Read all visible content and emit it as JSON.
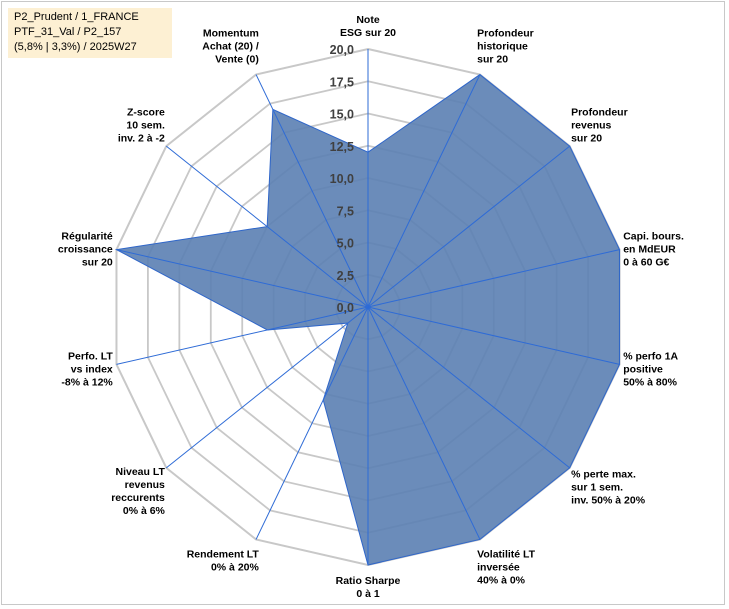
{
  "info_box": {
    "line1": "P2_Prudent / 1_FRANCE",
    "line2": "PTF_31_Val / P2_157",
    "line3": "(5,8% | 3,3%) / 2025W27"
  },
  "chart_data": {
    "type": "radar",
    "rmin": 0,
    "rmax": 20,
    "tick_values": [
      0,
      2.5,
      5,
      7.5,
      10,
      12.5,
      15,
      17.5,
      20
    ],
    "tick_labels": [
      "0,0",
      "2,5",
      "5,0",
      "7,5",
      "10,0",
      "12,5",
      "15,0",
      "17,5",
      "20,0"
    ],
    "grid": true,
    "categories": [
      [
        "Note",
        "ESG sur 20"
      ],
      [
        "Profondeur",
        "historique",
        "sur 20"
      ],
      [
        "Profondeur",
        "revenus",
        "sur 20"
      ],
      [
        "Capi. bours.",
        "en MdEUR",
        "0 à 60 G€"
      ],
      [
        "% perfo 1A",
        "positive",
        "50% à 80%"
      ],
      [
        "% perte max.",
        "sur 1 sem.",
        "inv. 50% à 20%"
      ],
      [
        "Volatilité LT",
        "inversée",
        "40% à 0%"
      ],
      [
        "Ratio Sharpe",
        "0 à 1"
      ],
      [
        "Rendement LT",
        "0% à 20%"
      ],
      [
        "Niveau LT",
        "revenus",
        "reccurents",
        "0% à 6%"
      ],
      [
        "Perfo. LT",
        "vs index",
        "-8% à 12%"
      ],
      [
        "Régularité",
        "croissance",
        "sur 20"
      ],
      [
        "Z-score",
        "10 sem.",
        "inv. 2 à -2"
      ],
      [
        "Momentum",
        "Achat (20) /",
        "Vente (0)"
      ]
    ],
    "values": [
      12,
      20,
      20,
      20,
      20,
      20,
      20,
      20,
      8,
      2,
      8,
      20,
      10,
      17
    ],
    "colors": {
      "fill": "#5b7fb3",
      "stroke": "#2f66c9",
      "grid": "#c8c8c8",
      "axis": "#2e6bd6"
    }
  }
}
